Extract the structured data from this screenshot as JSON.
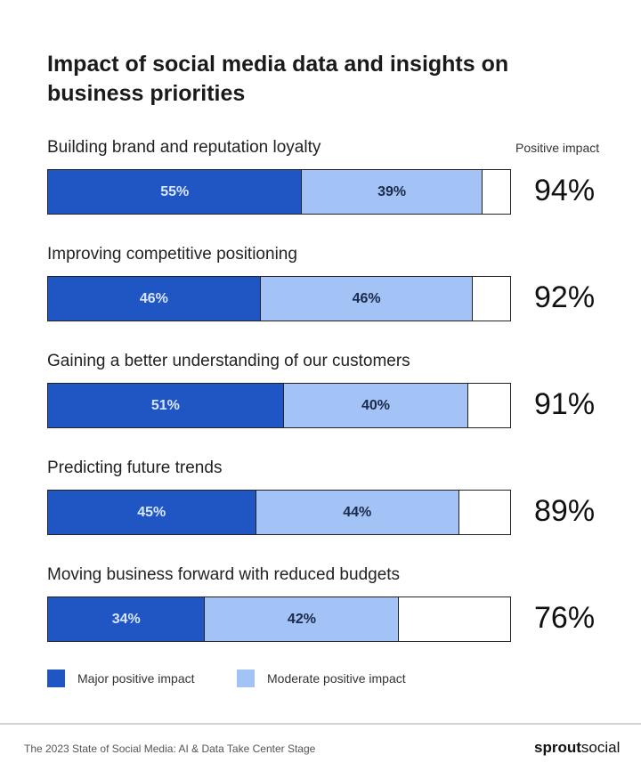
{
  "chart_data": {
    "type": "bar",
    "orientation": "horizontal",
    "stacked": true,
    "title": "Impact of social media data and insights on business priorities",
    "total_header": "Positive impact",
    "categories": [
      "Building brand and reputation loyalty",
      "Improving competitive positioning",
      "Gaining a better understanding of our customers",
      "Predicting future trends",
      "Moving business forward with reduced budgets"
    ],
    "series": [
      {
        "name": "Major positive impact",
        "color": "#1f56c3",
        "values": [
          55,
          46,
          51,
          45,
          34
        ]
      },
      {
        "name": "Moderate positive impact",
        "color": "#a3c2f5",
        "values": [
          39,
          46,
          40,
          44,
          42
        ]
      }
    ],
    "totals": [
      94,
      92,
      91,
      89,
      76
    ],
    "xlim": [
      0,
      100
    ],
    "unit": "%",
    "legend": "bottom-left"
  },
  "footer": {
    "source": "The 2023 State of Social Media: AI & Data Take Center Stage",
    "logo_bold": "sprout",
    "logo_rest": "social"
  }
}
